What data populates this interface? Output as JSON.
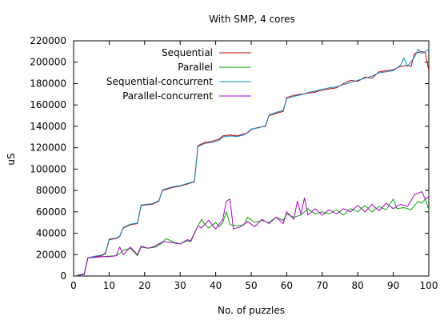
{
  "chart_data": {
    "type": "line",
    "title": "With SMP, 4 cores",
    "xlabel": "No. of puzzles",
    "ylabel": "uS",
    "xlim": [
      0,
      100
    ],
    "ylim": [
      0,
      220000
    ],
    "xticks": [
      0,
      10,
      20,
      30,
      40,
      50,
      60,
      70,
      80,
      90,
      100
    ],
    "yticks": [
      0,
      20000,
      40000,
      60000,
      80000,
      100000,
      120000,
      140000,
      160000,
      180000,
      200000,
      220000
    ],
    "grid": false,
    "legend_position": "top-left",
    "series": [
      {
        "name": "Sequential",
        "color": "#cc0000",
        "points": [
          [
            1,
            500
          ],
          [
            3,
            2000
          ],
          [
            4,
            17000
          ],
          [
            6,
            18000
          ],
          [
            8,
            19000
          ],
          [
            9,
            21000
          ],
          [
            10,
            34000
          ],
          [
            12,
            35000
          ],
          [
            13,
            37000
          ],
          [
            14,
            45000
          ],
          [
            16,
            48000
          ],
          [
            18,
            49000
          ],
          [
            19,
            66000
          ],
          [
            22,
            67000
          ],
          [
            24,
            70000
          ],
          [
            25,
            80000
          ],
          [
            28,
            83000
          ],
          [
            30,
            84000
          ],
          [
            32,
            86000
          ],
          [
            33,
            87000
          ],
          [
            34,
            88000
          ],
          [
            35,
            122000
          ],
          [
            37,
            125000
          ],
          [
            39,
            126000
          ],
          [
            41,
            128000
          ],
          [
            42,
            131000
          ],
          [
            44,
            132000
          ],
          [
            46,
            131000
          ],
          [
            48,
            133000
          ],
          [
            49,
            134000
          ],
          [
            50,
            137000
          ],
          [
            52,
            139000
          ],
          [
            54,
            140000
          ],
          [
            55,
            150000
          ],
          [
            57,
            152000
          ],
          [
            59,
            154000
          ],
          [
            60,
            167000
          ],
          [
            62,
            169000
          ],
          [
            64,
            170000
          ],
          [
            66,
            171000
          ],
          [
            68,
            172000
          ],
          [
            70,
            174000
          ],
          [
            72,
            175000
          ],
          [
            74,
            176000
          ],
          [
            76,
            180000
          ],
          [
            78,
            183000
          ],
          [
            80,
            182000
          ],
          [
            82,
            186000
          ],
          [
            84,
            185000
          ],
          [
            86,
            191000
          ],
          [
            88,
            192000
          ],
          [
            90,
            193000
          ],
          [
            92,
            196000
          ],
          [
            94,
            197000
          ],
          [
            95,
            196000
          ],
          [
            96,
            208000
          ],
          [
            98,
            210000
          ],
          [
            99,
            209000
          ],
          [
            100,
            192000
          ]
        ]
      },
      {
        "name": "Parallel",
        "color": "#00aa00",
        "points": [
          [
            1,
            500
          ],
          [
            3,
            1500
          ],
          [
            4,
            17000
          ],
          [
            6,
            17500
          ],
          [
            8,
            18000
          ],
          [
            10,
            18500
          ],
          [
            12,
            19000
          ],
          [
            13,
            21000
          ],
          [
            14,
            24000
          ],
          [
            16,
            26000
          ],
          [
            18,
            19000
          ],
          [
            19,
            27000
          ],
          [
            21,
            26000
          ],
          [
            23,
            27000
          ],
          [
            25,
            31000
          ],
          [
            26,
            35000
          ],
          [
            28,
            32000
          ],
          [
            30,
            30000
          ],
          [
            32,
            33000
          ],
          [
            33,
            32000
          ],
          [
            35,
            47000
          ],
          [
            36,
            53000
          ],
          [
            37,
            48000
          ],
          [
            38,
            45000
          ],
          [
            40,
            50000
          ],
          [
            41,
            46000
          ],
          [
            42,
            50000
          ],
          [
            43,
            60000
          ],
          [
            44,
            48000
          ],
          [
            46,
            47000
          ],
          [
            48,
            48000
          ],
          [
            49,
            55000
          ],
          [
            51,
            50000
          ],
          [
            53,
            52000
          ],
          [
            55,
            50000
          ],
          [
            57,
            55000
          ],
          [
            59,
            52000
          ],
          [
            60,
            58000
          ],
          [
            62,
            55000
          ],
          [
            64,
            57000
          ],
          [
            66,
            63000
          ],
          [
            68,
            58000
          ],
          [
            70,
            60000
          ],
          [
            72,
            58000
          ],
          [
            74,
            62000
          ],
          [
            76,
            57000
          ],
          [
            78,
            63000
          ],
          [
            80,
            60000
          ],
          [
            82,
            66000
          ],
          [
            84,
            60000
          ],
          [
            86,
            65000
          ],
          [
            88,
            62000
          ],
          [
            90,
            72000
          ],
          [
            91,
            63000
          ],
          [
            93,
            64000
          ],
          [
            95,
            62000
          ],
          [
            97,
            70000
          ],
          [
            98,
            68000
          ],
          [
            99,
            72000
          ],
          [
            100,
            62000
          ]
        ]
      },
      {
        "name": "Sequential-concurrent",
        "color": "#0088cc",
        "points": [
          [
            1,
            500
          ],
          [
            3,
            2000
          ],
          [
            4,
            17000
          ],
          [
            6,
            18500
          ],
          [
            8,
            19500
          ],
          [
            9,
            22000
          ],
          [
            10,
            34500
          ],
          [
            12,
            35500
          ],
          [
            13,
            37500
          ],
          [
            14,
            45500
          ],
          [
            16,
            48500
          ],
          [
            18,
            49500
          ],
          [
            19,
            66500
          ],
          [
            22,
            67500
          ],
          [
            24,
            70500
          ],
          [
            25,
            80500
          ],
          [
            28,
            83500
          ],
          [
            30,
            84500
          ],
          [
            32,
            86500
          ],
          [
            33,
            87500
          ],
          [
            34,
            88500
          ],
          [
            35,
            121000
          ],
          [
            37,
            124000
          ],
          [
            39,
            125000
          ],
          [
            41,
            127000
          ],
          [
            42,
            130000
          ],
          [
            44,
            131000
          ],
          [
            46,
            130500
          ],
          [
            48,
            132000
          ],
          [
            49,
            134500
          ],
          [
            50,
            137500
          ],
          [
            52,
            138500
          ],
          [
            54,
            140500
          ],
          [
            55,
            150500
          ],
          [
            57,
            153000
          ],
          [
            59,
            155000
          ],
          [
            60,
            166000
          ],
          [
            62,
            168000
          ],
          [
            64,
            169500
          ],
          [
            66,
            171500
          ],
          [
            68,
            173000
          ],
          [
            70,
            174500
          ],
          [
            72,
            176000
          ],
          [
            74,
            177000
          ],
          [
            76,
            179000
          ],
          [
            78,
            181000
          ],
          [
            80,
            183000
          ],
          [
            82,
            185000
          ],
          [
            84,
            187000
          ],
          [
            86,
            190000
          ],
          [
            88,
            191000
          ],
          [
            90,
            192000
          ],
          [
            92,
            197000
          ],
          [
            93,
            204000
          ],
          [
            94,
            196000
          ],
          [
            96,
            205000
          ],
          [
            97,
            212000
          ],
          [
            98,
            208000
          ],
          [
            100,
            212000
          ]
        ]
      },
      {
        "name": "Parallel-concurrent",
        "color": "#aa00cc",
        "points": [
          [
            1,
            500
          ],
          [
            3,
            1500
          ],
          [
            4,
            17000
          ],
          [
            6,
            17500
          ],
          [
            8,
            18000
          ],
          [
            10,
            18000
          ],
          [
            12,
            19000
          ],
          [
            13,
            27000
          ],
          [
            14,
            20000
          ],
          [
            16,
            27000
          ],
          [
            18,
            20000
          ],
          [
            19,
            28000
          ],
          [
            21,
            26000
          ],
          [
            23,
            28000
          ],
          [
            25,
            32000
          ],
          [
            26,
            32000
          ],
          [
            28,
            31000
          ],
          [
            30,
            30000
          ],
          [
            32,
            34000
          ],
          [
            33,
            33000
          ],
          [
            35,
            47000
          ],
          [
            36,
            45000
          ],
          [
            38,
            52000
          ],
          [
            40,
            44000
          ],
          [
            42,
            53000
          ],
          [
            43,
            70000
          ],
          [
            44,
            72000
          ],
          [
            45,
            44000
          ],
          [
            47,
            46000
          ],
          [
            49,
            51000
          ],
          [
            51,
            46000
          ],
          [
            53,
            53000
          ],
          [
            55,
            49000
          ],
          [
            57,
            55000
          ],
          [
            59,
            49000
          ],
          [
            60,
            60000
          ],
          [
            62,
            53000
          ],
          [
            63,
            70000
          ],
          [
            64,
            58000
          ],
          [
            65,
            73000
          ],
          [
            66,
            57000
          ],
          [
            68,
            63000
          ],
          [
            70,
            57000
          ],
          [
            72,
            62000
          ],
          [
            74,
            58000
          ],
          [
            76,
            63000
          ],
          [
            78,
            60000
          ],
          [
            80,
            66000
          ],
          [
            82,
            60000
          ],
          [
            84,
            67000
          ],
          [
            86,
            61000
          ],
          [
            88,
            68000
          ],
          [
            90,
            63000
          ],
          [
            92,
            67000
          ],
          [
            94,
            65000
          ],
          [
            96,
            76000
          ],
          [
            98,
            79000
          ],
          [
            99,
            72000
          ],
          [
            100,
            74000
          ]
        ]
      }
    ]
  }
}
